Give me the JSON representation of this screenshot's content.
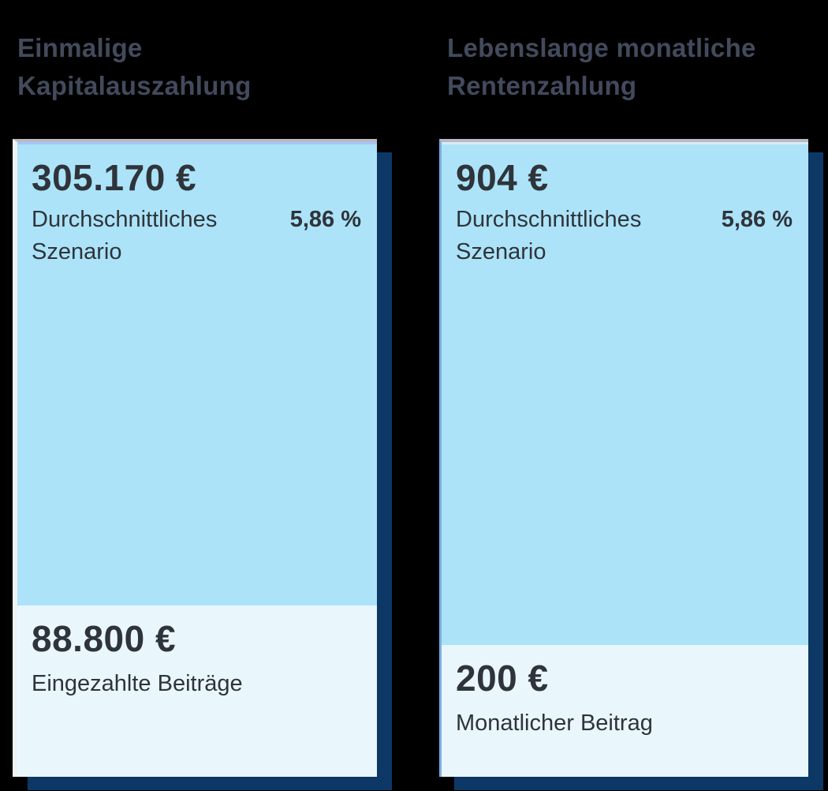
{
  "colors": {
    "page_background": "#000000",
    "heading_text": "#424a5c",
    "card_top_background": "#ace3f8",
    "card_bottom_background": "#e9f7fd",
    "card_shadow_navy": "#0d3865",
    "value_text": "#2f343a"
  },
  "columns": [
    {
      "title": "Einmalige Kapitalauszahlung",
      "card": {
        "main_value": "305.170 €",
        "scenario_label": "Durchschnittliches Szenario",
        "scenario_rate": "5,86 %",
        "footer_value": "88.800 €",
        "footer_label": "Eingezahlte Beiträge"
      }
    },
    {
      "title": "Lebenslange monatliche Rentenzahlung",
      "card": {
        "main_value": "904 €",
        "scenario_label": "Durchschnittliches Szenario",
        "scenario_rate": "5,86 %",
        "footer_value": "200 €",
        "footer_label": "Monatlicher Beitrag"
      }
    }
  ]
}
